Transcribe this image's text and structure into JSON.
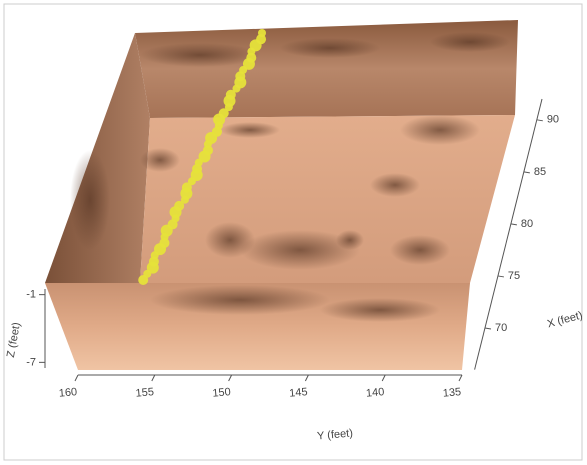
{
  "chart_data": {
    "type": "volume3d",
    "xlabel": "X (feet)",
    "ylabel": "Y (feet)",
    "zlabel": "Z (feet)",
    "xlim": [
      66,
      92
    ],
    "xticks": [
      70,
      75,
      80,
      85,
      90
    ],
    "ylim": [
      160,
      135
    ],
    "yticks": [
      160,
      155,
      150,
      145,
      140,
      135
    ],
    "zlim": [
      -7.5,
      -0.5
    ],
    "zticks": [
      -1,
      -7
    ],
    "color": "#e6e23a"
  }
}
